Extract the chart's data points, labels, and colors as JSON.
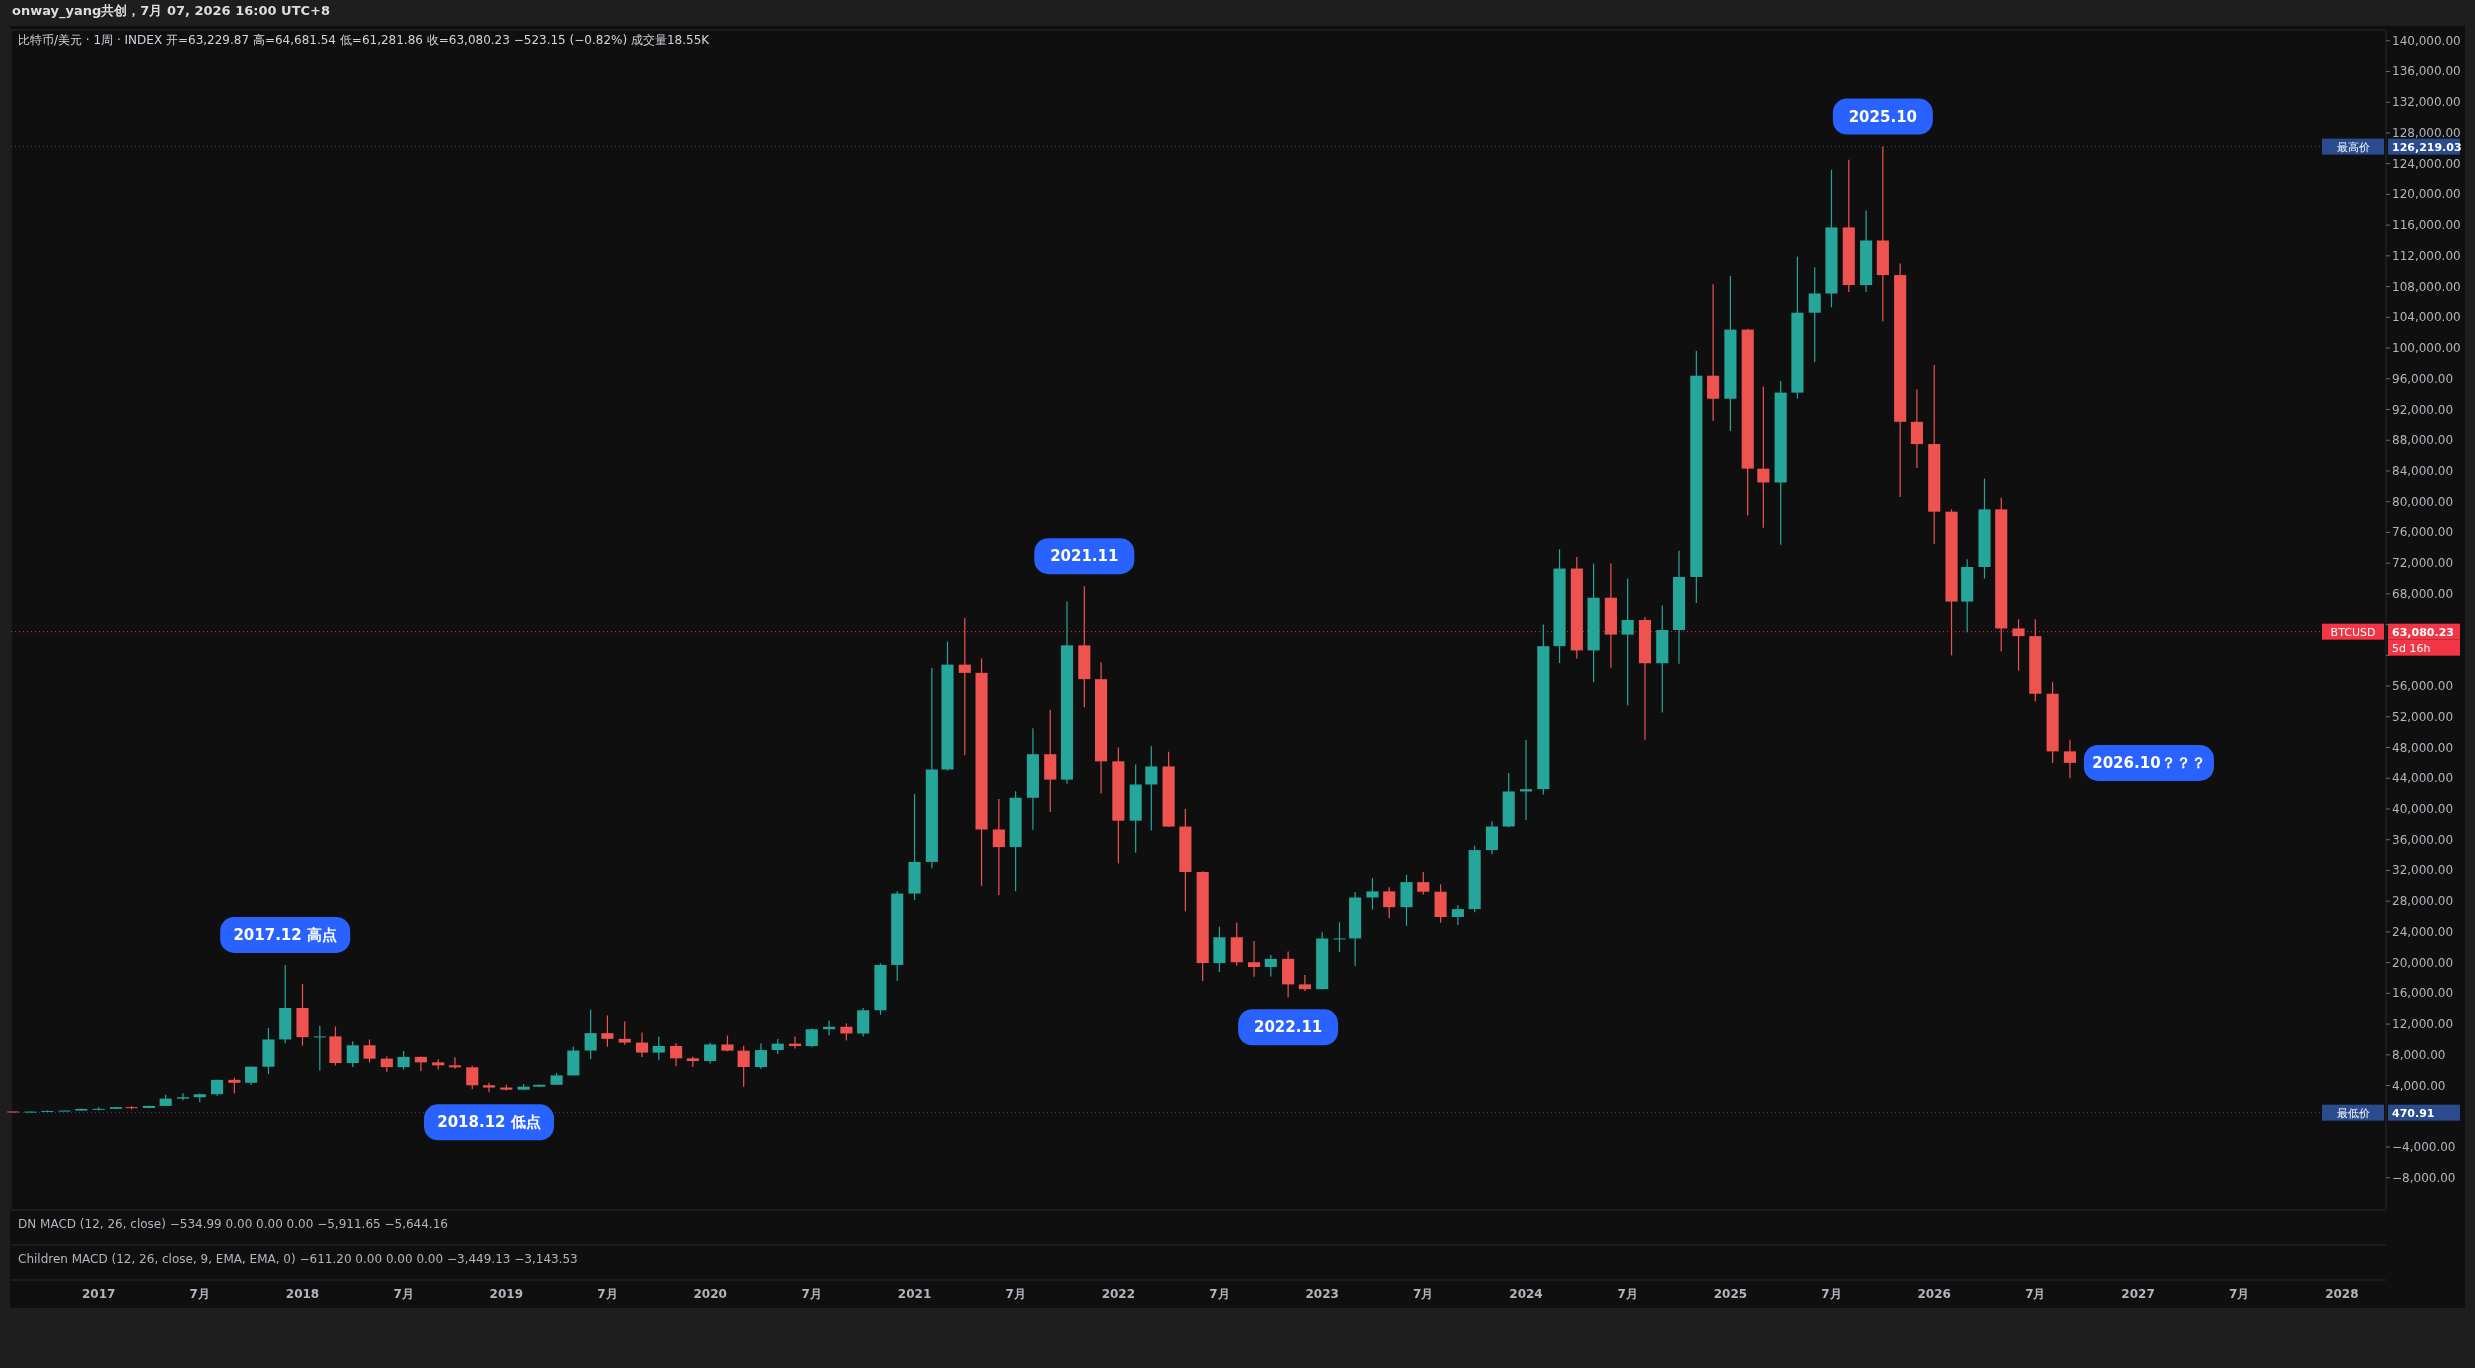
{
  "chart_data": {
    "type": "candlestick",
    "title": "比特币/美元 · 1周 · INDEX 开=63,229.87 高=64,681.54 低=61,281.86 收=63,080.23 −523.15 (−0.82%) 成交量18.55K",
    "x": [
      "2016-08",
      "2016-09",
      "2016-10",
      "2016-11",
      "2016-12",
      "2017-01",
      "2017-02",
      "2017-03",
      "2017-04",
      "2017-05",
      "2017-06",
      "2017-07",
      "2017-08",
      "2017-09",
      "2017-10",
      "2017-11",
      "2017-12",
      "2018-01",
      "2018-02",
      "2018-03",
      "2018-04",
      "2018-05",
      "2018-06",
      "2018-07",
      "2018-08",
      "2018-09",
      "2018-10",
      "2018-11",
      "2018-12",
      "2019-01",
      "2019-02",
      "2019-03",
      "2019-04",
      "2019-05",
      "2019-06",
      "2019-07",
      "2019-08",
      "2019-09",
      "2019-10",
      "2019-11",
      "2019-12",
      "2020-01",
      "2020-02",
      "2020-03",
      "2020-04",
      "2020-05",
      "2020-06",
      "2020-07",
      "2020-08",
      "2020-09",
      "2020-10",
      "2020-11",
      "2020-12",
      "2021-01",
      "2021-02",
      "2021-03",
      "2021-04",
      "2021-05",
      "2021-06",
      "2021-07",
      "2021-08",
      "2021-09",
      "2021-10",
      "2021-11",
      "2021-12",
      "2022-01",
      "2022-02",
      "2022-03",
      "2022-04",
      "2022-05",
      "2022-06",
      "2022-07",
      "2022-08",
      "2022-09",
      "2022-10",
      "2022-11",
      "2022-12",
      "2023-01",
      "2023-02",
      "2023-03",
      "2023-04",
      "2023-05",
      "2023-06",
      "2023-07",
      "2023-08",
      "2023-09",
      "2023-10",
      "2023-11",
      "2023-12",
      "2024-01",
      "2024-02",
      "2024-03",
      "2024-04",
      "2024-05",
      "2024-06",
      "2024-07",
      "2024-08",
      "2024-09",
      "2024-10",
      "2024-11",
      "2024-12",
      "2025-01",
      "2025-02",
      "2025-03",
      "2025-04",
      "2025-05",
      "2025-06",
      "2025-07",
      "2025-08",
      "2025-09",
      "2025-10",
      "2025-11",
      "2025-12",
      "2026-01",
      "2026-02",
      "2026-03",
      "2026-04",
      "2026-05",
      "2026-06",
      "2026-07",
      "2026-08",
      "2026-09"
    ],
    "ohlc": [
      [
        624,
        626,
        471,
        575
      ],
      [
        575,
        628,
        570,
        609
      ],
      [
        609,
        740,
        604,
        700
      ],
      [
        700,
        755,
        680,
        742
      ],
      [
        742,
        980,
        740,
        966
      ],
      [
        966,
        1160,
        760,
        970
      ],
      [
        970,
        1210,
        920,
        1190
      ],
      [
        1190,
        1300,
        890,
        1080
      ],
      [
        1080,
        1360,
        1060,
        1350
      ],
      [
        1350,
        2790,
        1340,
        2300
      ],
      [
        2300,
        3000,
        2100,
        2480
      ],
      [
        2480,
        2950,
        1830,
        2870
      ],
      [
        2870,
        4770,
        2670,
        4740
      ],
      [
        4740,
        5000,
        2970,
        4360
      ],
      [
        4360,
        6470,
        4110,
        6450
      ],
      [
        6450,
        11500,
        5500,
        10000
      ],
      [
        10000,
        19700,
        9500,
        14100
      ],
      [
        14100,
        17200,
        9200,
        10300
      ],
      [
        10300,
        11800,
        5970,
        10400
      ],
      [
        10400,
        11700,
        6600,
        6930
      ],
      [
        6930,
        9760,
        6430,
        9240
      ],
      [
        9240,
        10000,
        7000,
        7500
      ],
      [
        7500,
        7770,
        5780,
        6400
      ],
      [
        6400,
        8500,
        6070,
        7730
      ],
      [
        7730,
        7760,
        5880,
        7020
      ],
      [
        7020,
        7410,
        6100,
        6630
      ],
      [
        6630,
        7680,
        6200,
        6370
      ],
      [
        6370,
        6590,
        3550,
        4040
      ],
      [
        4040,
        4360,
        3120,
        3740
      ],
      [
        3740,
        4110,
        3350,
        3460
      ],
      [
        3460,
        4200,
        3380,
        3850
      ],
      [
        3850,
        4110,
        3800,
        4100
      ],
      [
        4100,
        5630,
        4090,
        5320
      ],
      [
        5320,
        9070,
        5300,
        8560
      ],
      [
        8560,
        13880,
        7450,
        10820
      ],
      [
        10820,
        13130,
        9050,
        10080
      ],
      [
        10080,
        12330,
        9320,
        9590
      ],
      [
        9590,
        10900,
        7710,
        8290
      ],
      [
        8290,
        10370,
        7300,
        9150
      ],
      [
        9150,
        9510,
        6520,
        7540
      ],
      [
        7540,
        7750,
        6430,
        7190
      ],
      [
        7190,
        9580,
        6870,
        9350
      ],
      [
        9350,
        10500,
        8460,
        8540
      ],
      [
        8540,
        9190,
        3850,
        6410
      ],
      [
        6410,
        9470,
        6150,
        8620
      ],
      [
        8620,
        10070,
        8100,
        9450
      ],
      [
        9450,
        10390,
        8830,
        9140
      ],
      [
        9140,
        11440,
        8980,
        11330
      ],
      [
        11330,
        12470,
        10530,
        11650
      ],
      [
        11650,
        12100,
        9880,
        10780
      ],
      [
        10780,
        14100,
        10400,
        13800
      ],
      [
        13800,
        19900,
        13200,
        19700
      ],
      [
        19700,
        29300,
        17600,
        28990
      ],
      [
        28990,
        41950,
        28130,
        33110
      ],
      [
        33110,
        58350,
        32300,
        45140
      ],
      [
        45140,
        61800,
        45000,
        58790
      ],
      [
        58790,
        64850,
        47000,
        57720
      ],
      [
        57720,
        59600,
        30000,
        37330
      ],
      [
        37330,
        41300,
        28800,
        35040
      ],
      [
        35040,
        42300,
        29300,
        41460
      ],
      [
        41460,
        50500,
        37300,
        47130
      ],
      [
        47130,
        52900,
        39600,
        43820
      ],
      [
        43820,
        67000,
        43300,
        61300
      ],
      [
        61300,
        69000,
        53250,
        56900
      ],
      [
        56900,
        59100,
        42000,
        46200
      ],
      [
        46200,
        47990,
        32950,
        38480
      ],
      [
        38480,
        45800,
        34300,
        43190
      ],
      [
        43190,
        48200,
        37200,
        45540
      ],
      [
        45540,
        47450,
        37700,
        37710
      ],
      [
        37710,
        40000,
        26700,
        31800
      ],
      [
        31800,
        31900,
        17600,
        19940
      ],
      [
        19940,
        24670,
        18780,
        23300
      ],
      [
        23300,
        25200,
        19600,
        20050
      ],
      [
        20050,
        22800,
        18150,
        19430
      ],
      [
        19430,
        21000,
        18200,
        20490
      ],
      [
        20490,
        21450,
        15480,
        17170
      ],
      [
        17170,
        18400,
        16300,
        16550
      ],
      [
        16550,
        23950,
        16500,
        23140
      ],
      [
        23140,
        25250,
        21400,
        23150
      ],
      [
        23150,
        29200,
        19570,
        28480
      ],
      [
        28480,
        31000,
        26900,
        29270
      ],
      [
        29270,
        29820,
        25800,
        27220
      ],
      [
        27220,
        31430,
        24800,
        30480
      ],
      [
        30480,
        31800,
        28860,
        29230
      ],
      [
        29230,
        30200,
        25200,
        25940
      ],
      [
        25940,
        27500,
        24900,
        26970
      ],
      [
        26970,
        35200,
        26560,
        34650
      ],
      [
        34650,
        38400,
        34100,
        37720
      ],
      [
        37720,
        44700,
        37620,
        42280
      ],
      [
        42280,
        48970,
        38550,
        42580
      ],
      [
        42580,
        64000,
        41880,
        61200
      ],
      [
        61200,
        73800,
        59000,
        71300
      ],
      [
        71300,
        72800,
        59600,
        60640
      ],
      [
        60640,
        71950,
        56500,
        67500
      ],
      [
        67500,
        71950,
        58400,
        62700
      ],
      [
        62700,
        70000,
        53500,
        64600
      ],
      [
        64600,
        65000,
        49000,
        58970
      ],
      [
        58970,
        66500,
        52550,
        63300
      ],
      [
        63300,
        73600,
        58900,
        70200
      ],
      [
        70200,
        99600,
        66800,
        96400
      ],
      [
        96400,
        108300,
        90500,
        93400
      ],
      [
        93400,
        109400,
        89200,
        102400
      ],
      [
        102400,
        102500,
        78200,
        84300
      ],
      [
        84300,
        95000,
        76600,
        82500
      ],
      [
        82500,
        95700,
        74400,
        94200
      ],
      [
        94200,
        111900,
        93400,
        104600
      ],
      [
        104600,
        110500,
        98200,
        107100
      ],
      [
        107100,
        123200,
        105300,
        115700
      ],
      [
        115700,
        124500,
        107300,
        108200
      ],
      [
        108200,
        117900,
        107300,
        114000
      ],
      [
        114000,
        126219,
        103500,
        109500
      ],
      [
        109500,
        111000,
        80600,
        90400
      ],
      [
        90400,
        94600,
        84400,
        87500
      ],
      [
        87500,
        97800,
        74500,
        78700
      ],
      [
        78700,
        79000,
        60000,
        67000
      ],
      [
        67000,
        72500,
        63000,
        71500
      ],
      [
        71500,
        83000,
        70000,
        79000
      ],
      [
        79000,
        80500,
        60500,
        63500
      ],
      [
        63500,
        64700,
        58000,
        62500
      ],
      [
        62500,
        64700,
        54000,
        55000
      ],
      [
        55000,
        56500,
        46000,
        47500
      ],
      [
        47500,
        49000,
        44000,
        46000
      ]
    ],
    "xlim": [
      "2016-07-28",
      "2028-03-20"
    ],
    "xticks": [
      "2017",
      {
        "value": "2017-07",
        "label": "7月"
      },
      "2018",
      {
        "value": "2018-07",
        "label": "7月"
      },
      "2019",
      {
        "value": "2019-07",
        "label": "7月"
      },
      "2020",
      {
        "value": "2020-07",
        "label": "7月"
      },
      "2021",
      {
        "value": "2021-07",
        "label": "7月"
      },
      "2022",
      {
        "value": "2022-07",
        "label": "7月"
      },
      "2023",
      {
        "value": "2023-07",
        "label": "7月"
      },
      "2024",
      {
        "value": "2024-07",
        "label": "7月"
      },
      "2025",
      {
        "value": "2025-07",
        "label": "7月"
      },
      "2026",
      {
        "value": "2026-07",
        "label": "7月"
      },
      "2027",
      {
        "value": "2027-07",
        "label": "7月"
      },
      "2028"
    ],
    "ylim": [
      -12200,
      141400
    ],
    "yticks": [
      {
        "value": -8000,
        "label": "−8,000.00"
      },
      {
        "value": -4000,
        "label": "−4,000.00"
      },
      {
        "value": 4000,
        "label": "4,000.00"
      },
      {
        "value": 8000,
        "label": "8,000.00"
      },
      {
        "value": 12000,
        "label": "12,000.00"
      },
      {
        "value": 16000,
        "label": "16,000.00"
      },
      {
        "value": 20000,
        "label": "20,000.00"
      },
      {
        "value": 24000,
        "label": "24,000.00"
      },
      {
        "value": 28000,
        "label": "28,000.00"
      },
      {
        "value": 32000,
        "label": "32,000.00"
      },
      {
        "value": 36000,
        "label": "36,000.00"
      },
      {
        "value": 40000,
        "label": "40,000.00"
      },
      {
        "value": 44000,
        "label": "44,000.00"
      },
      {
        "value": 48000,
        "label": "48,000.00"
      },
      {
        "value": 52000,
        "label": "52,000.00"
      },
      {
        "value": 56000,
        "label": "56,000.00"
      },
      {
        "value": 60000,
        "label": null
      },
      {
        "value": 64000,
        "label": null
      },
      {
        "value": 68000,
        "label": "68,000.00"
      },
      {
        "value": 72000,
        "label": "72,000.00"
      },
      {
        "value": 76000,
        "label": "76,000.00"
      },
      {
        "value": 80000,
        "label": "80,000.00"
      },
      {
        "value": 84000,
        "label": "84,000.00"
      },
      {
        "value": 88000,
        "label": "88,000.00"
      },
      {
        "value": 92000,
        "label": "92,000.00"
      },
      {
        "value": 96000,
        "label": "96,000.00"
      },
      {
        "value": 100000,
        "label": "100,000.00"
      },
      {
        "value": 104000,
        "label": "104,000.00"
      },
      {
        "value": 108000,
        "label": "108,000.00"
      },
      {
        "value": 112000,
        "label": "112,000.00"
      },
      {
        "value": 116000,
        "label": "116,000.00"
      },
      {
        "value": 120000,
        "label": "120,000.00"
      },
      {
        "value": 124000,
        "label": "124,000.00"
      },
      {
        "value": 128000,
        "label": "128,000.00"
      },
      {
        "value": 132000,
        "label": "132,000.00"
      },
      {
        "value": 136000,
        "label": "136,000.00"
      },
      {
        "value": 140000,
        "label": "140,000.00"
      }
    ],
    "ref_lines": [
      {
        "axis": "y",
        "value": 126219.03,
        "label": "最高价 126,219.03",
        "color": "#2a4b8d",
        "line_style": "dotted"
      },
      {
        "axis": "y",
        "value": 63080.23,
        "label": "BTCUSD 63,080.23",
        "color": "#f23645",
        "line_style": "dotted"
      },
      {
        "axis": "y",
        "value": 470.91,
        "label": "最低价 470.91",
        "color": "#2a4b8d",
        "line_style": "dotted"
      }
    ],
    "annotations": [
      "onway_yang共创，7月 07, 2026 16:00 UTC+8",
      "DN MACD (12, 26, close) −534.99 0.00 0.00 0.00 −5,911.65 −5,644.16",
      "Children MACD (12, 26, close, 9, EMA, EMA, 0) −611.20 0.00 0.00 0.00 −3,449.13 −3,143.53",
      "5d 16h",
      {
        "text": "2017.12 高点",
        "x": "2017-12",
        "y": 19700
      },
      {
        "text": "2018.12 低点",
        "x": "2018-12",
        "y": 3120
      },
      {
        "text": "2021.11",
        "x": "2021-11",
        "y": 69000
      },
      {
        "text": "2022.11",
        "x": "2022-11",
        "y": 15480
      },
      {
        "text": "2025.10",
        "x": "2025-10",
        "y": 126219
      },
      {
        "text": "2026.10？？？",
        "x": "2026-09",
        "y": 46000
      }
    ]
  }
}
